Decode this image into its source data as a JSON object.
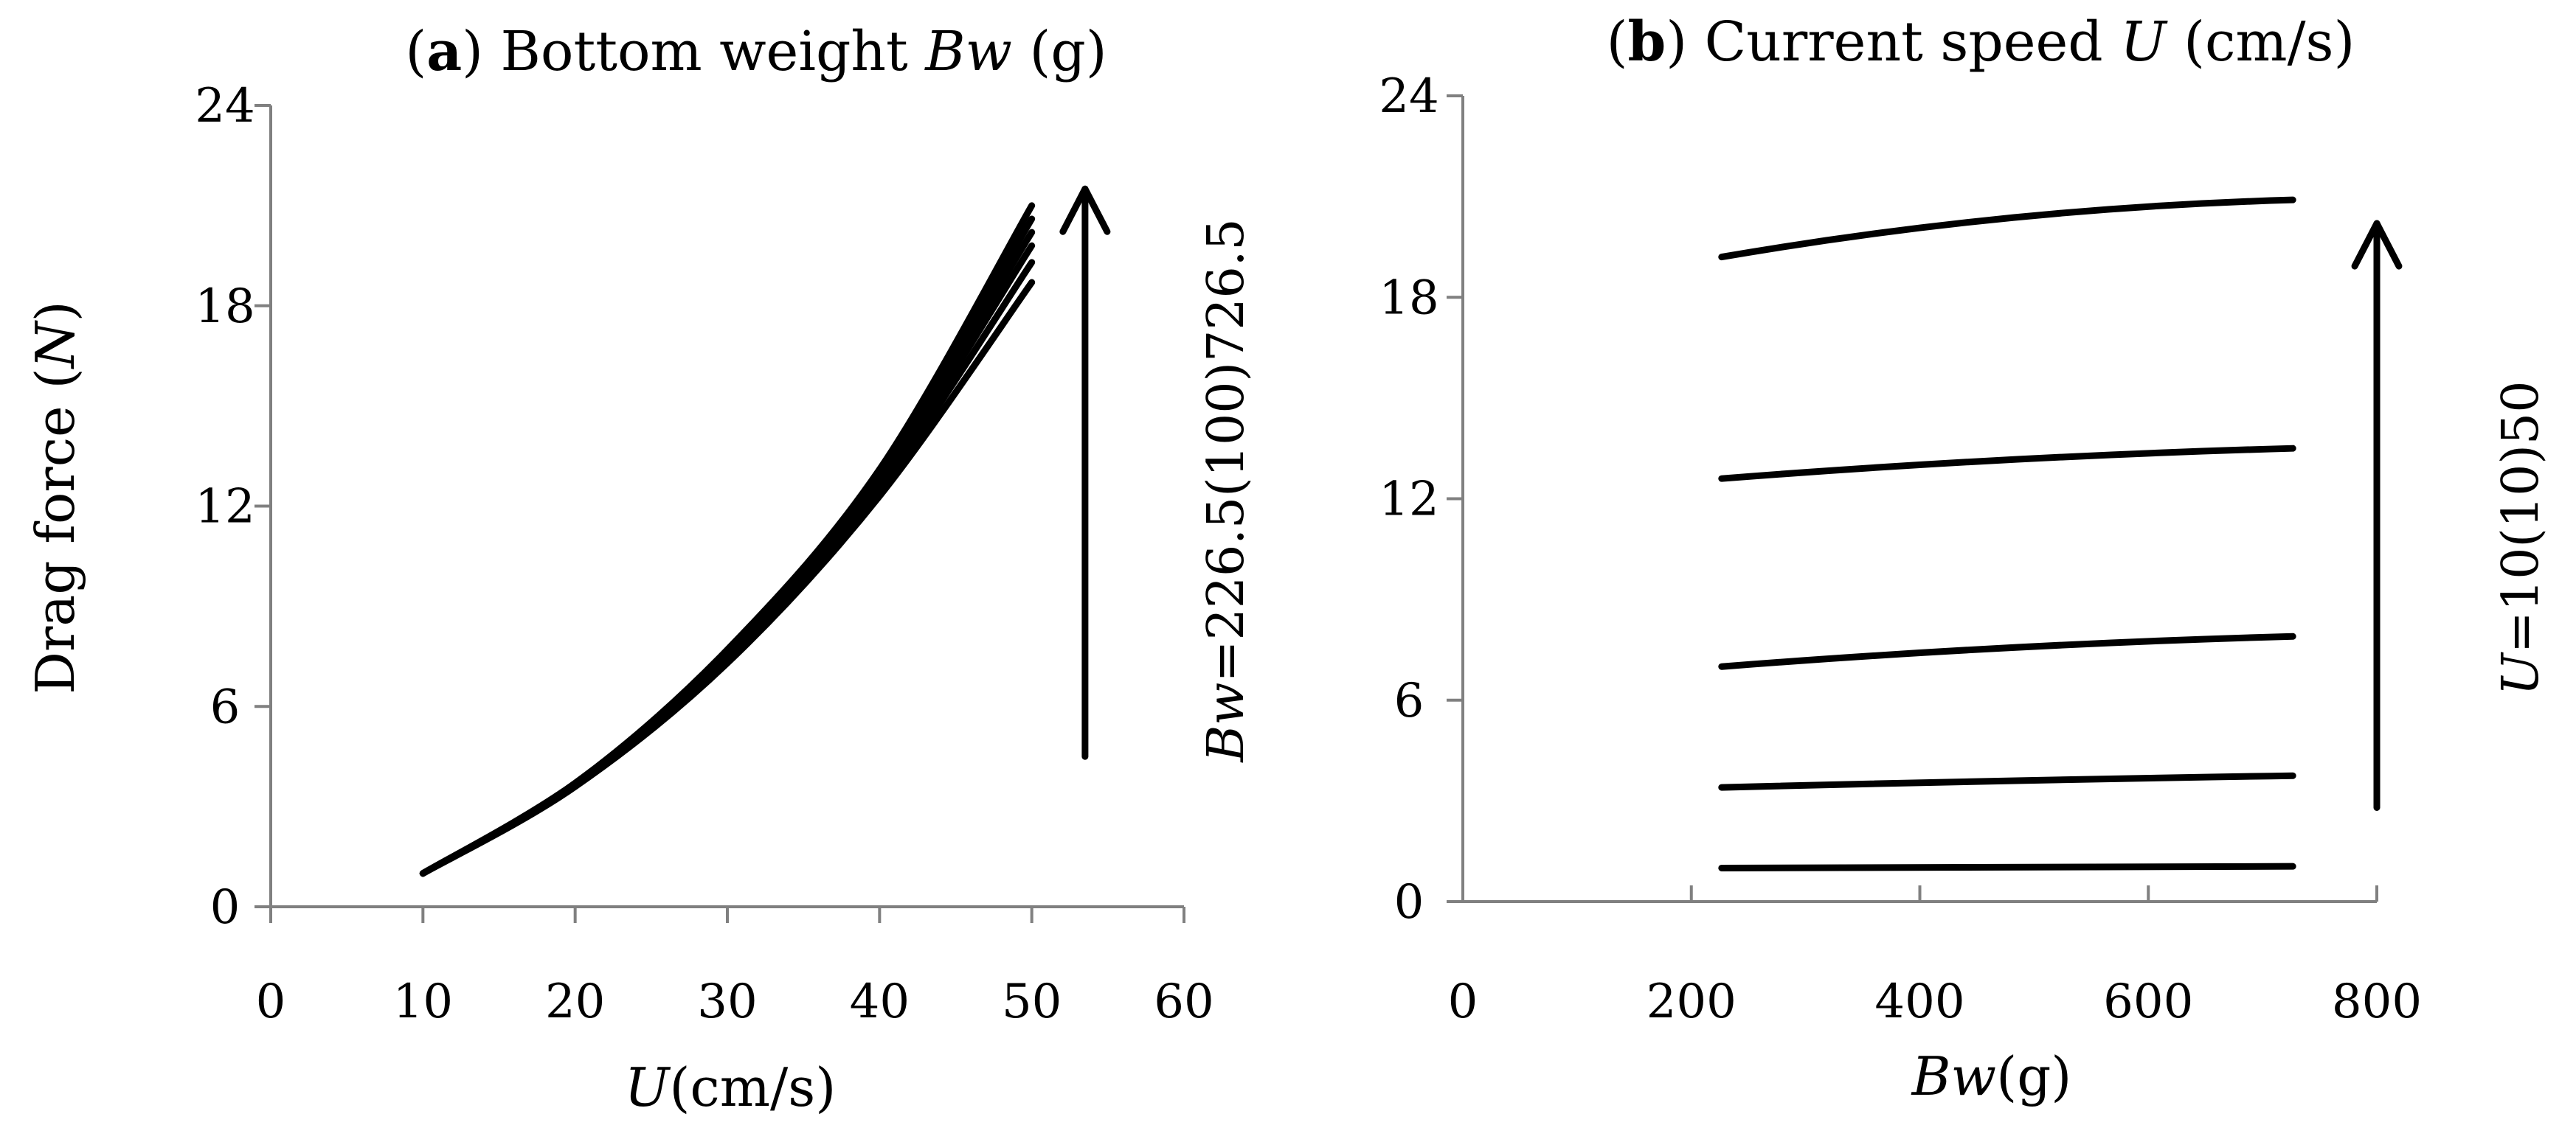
{
  "chart_data": [
    {
      "type": "line",
      "title_prefix": "a",
      "title_text": " Bottom weight ",
      "title_var": "Bw",
      "title_unit": " (g)",
      "ylabel_text": "Drag force (",
      "ylabel_var": "N",
      "ylabel_close": ")",
      "xlabel_var": "U",
      "xlabel_unit": "(cm/s)",
      "xlim": [
        0,
        60
      ],
      "ylim": [
        0,
        24
      ],
      "xticks": [
        "0",
        "10",
        "20",
        "30",
        "40",
        "50",
        "60"
      ],
      "yticks": [
        "0",
        "6",
        "12",
        "18",
        "24"
      ],
      "arrow": {
        "x": 53.5,
        "y_from": 4.5,
        "y_to": 21.5
      },
      "annotation_var": "Bw",
      "annotation_text": "=226.5(100)726.5",
      "series": [
        {
          "name": "Bw=226.5",
          "x": [
            10,
            20,
            30,
            40,
            50
          ],
          "y": [
            1.0,
            3.6,
            7.3,
            12.3,
            18.7
          ]
        },
        {
          "name": "Bw=326.5",
          "x": [
            10,
            20,
            30,
            40,
            50
          ],
          "y": [
            1.0,
            3.6,
            7.4,
            12.5,
            19.3
          ]
        },
        {
          "name": "Bw=426.5",
          "x": [
            10,
            20,
            30,
            40,
            50
          ],
          "y": [
            1.0,
            3.7,
            7.5,
            12.7,
            19.8
          ]
        },
        {
          "name": "Bw=526.5",
          "x": [
            10,
            20,
            30,
            40,
            50
          ],
          "y": [
            1.0,
            3.7,
            7.6,
            12.9,
            20.2
          ]
        },
        {
          "name": "Bw=626.5",
          "x": [
            10,
            20,
            30,
            40,
            50
          ],
          "y": [
            1.0,
            3.7,
            7.6,
            13.0,
            20.6
          ]
        },
        {
          "name": "Bw=726.5",
          "x": [
            10,
            20,
            30,
            40,
            50
          ],
          "y": [
            1.0,
            3.7,
            7.7,
            13.1,
            21.0
          ]
        }
      ]
    },
    {
      "type": "line",
      "title_prefix": "b",
      "title_text": " Current speed ",
      "title_var": "U",
      "title_unit": " (cm/s)",
      "xlabel_var": "Bw",
      "xlabel_unit": "(g)",
      "xlim": [
        0,
        800
      ],
      "ylim": [
        0,
        24
      ],
      "xticks": [
        "0",
        "200",
        "400",
        "600",
        "800"
      ],
      "yticks": [
        "0",
        "6",
        "12",
        "18",
        "24"
      ],
      "arrow": {
        "x": 800,
        "y_from": 2.8,
        "y_to": 20.2
      },
      "annotation_var": "U",
      "annotation_text": "=10(10)50",
      "series": [
        {
          "name": "U=10",
          "x": [
            226.5,
            726.5
          ],
          "y": [
            1.0,
            1.05
          ],
          "curve": 0
        },
        {
          "name": "U=20",
          "x": [
            226.5,
            726.5
          ],
          "y": [
            3.4,
            3.75
          ],
          "curve": 0.1
        },
        {
          "name": "U=30",
          "x": [
            226.5,
            726.5
          ],
          "y": [
            7.0,
            7.9
          ],
          "curve": 0.2
        },
        {
          "name": "U=40",
          "x": [
            226.5,
            726.5
          ],
          "y": [
            12.6,
            13.5
          ],
          "curve": 0.2
        },
        {
          "name": "U=50",
          "x": [
            226.5,
            726.5
          ],
          "y": [
            19.2,
            20.9
          ],
          "curve": 0.3
        }
      ]
    }
  ]
}
